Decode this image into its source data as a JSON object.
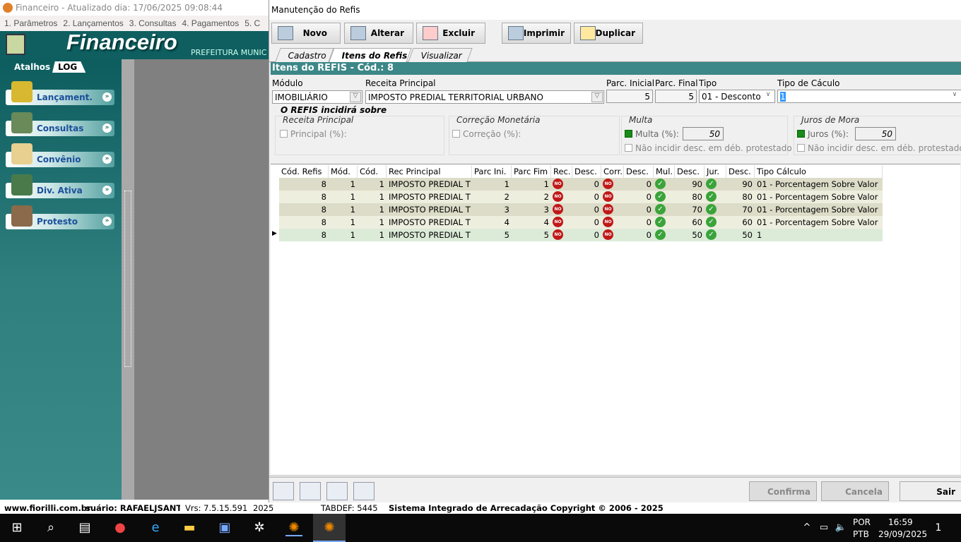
{
  "app": {
    "title": "Financeiro - Atualizado dia: 17/06/2025 09:08:44",
    "menu": [
      "1. Parâmetros",
      "2. Lançamentos",
      "3. Consultas",
      "4. Pagamentos",
      "5. C"
    ],
    "brand": "Financeiro",
    "subtitle": "PREFEITURA MUNIC"
  },
  "sidebar": {
    "atalhos": "Atalhos",
    "log": "LOG",
    "items": [
      {
        "label": "Lançament."
      },
      {
        "label": "Consultas"
      },
      {
        "label": "Convênio"
      },
      {
        "label": "Div. Ativa"
      },
      {
        "label": "Protesto"
      }
    ]
  },
  "dialog": {
    "title": "Manutenção do Refis",
    "toolbar": {
      "novo": "Novo",
      "alterar": "Alterar",
      "excluir": "Excluir",
      "imprimir": "Imprimir",
      "duplicar": "Duplicar"
    },
    "tabs": [
      "Cadastro",
      "Itens do Refis",
      "Visualizar"
    ],
    "section_title": "Itens do REFIS - Cód.:  8",
    "form": {
      "modulo_label": "Módulo",
      "modulo": "IMOBILIÁRIO",
      "receita_label": "Receita Principal",
      "receita": "IMPOSTO PREDIAL TERRITORIAL URBANO",
      "parc_ini_label": "Parc. Inicial",
      "parc_ini": "5",
      "parc_fim_label": "Parc. Final",
      "parc_fim": "5",
      "tipo_label": "Tipo",
      "tipo": "01 - Desconto",
      "tipo_calc_label": "Tipo de Cáculo",
      "tipo_calc": "1"
    },
    "incidence": {
      "title": "O REFIS incidirá sobre",
      "receita": {
        "title": "Receita Principal",
        "check": "Principal (%):",
        "checked": false
      },
      "correcao": {
        "title": "Correção Monetária",
        "check": "Correção (%):",
        "checked": false
      },
      "multa": {
        "title": "Multa",
        "check": "Multa (%):",
        "checked": true,
        "value": "50",
        "protest": "Não incidir desc. em déb. protestado"
      },
      "juros": {
        "title": "Juros de Mora",
        "check": "Juros (%):",
        "checked": true,
        "value": "50",
        "protest": "Não incidir desc. em déb. protestado"
      }
    },
    "grid": {
      "columns": [
        "Cód. Refis",
        "Mód.",
        "Cód.",
        "Rec Principal",
        "Parc Ini.",
        "Parc Fim",
        "Rec.",
        "Desc.",
        "Corr.",
        "Desc.",
        "Mul.",
        "Desc.",
        "Jur.",
        "Desc.",
        "Tipo Cálculo"
      ],
      "rows": [
        [
          "8",
          "1",
          "1",
          "IMPOSTO PREDIAL T",
          "1",
          "1",
          "no",
          "0",
          "no",
          "0",
          "ok",
          "90",
          "ok",
          "90",
          "01 - Porcentagem Sobre Valor"
        ],
        [
          "8",
          "1",
          "1",
          "IMPOSTO PREDIAL T",
          "2",
          "2",
          "no",
          "0",
          "no",
          "0",
          "ok",
          "80",
          "ok",
          "80",
          "01 - Porcentagem Sobre Valor"
        ],
        [
          "8",
          "1",
          "1",
          "IMPOSTO PREDIAL T",
          "3",
          "3",
          "no",
          "0",
          "no",
          "0",
          "ok",
          "70",
          "ok",
          "70",
          "01 - Porcentagem Sobre Valor"
        ],
        [
          "8",
          "1",
          "1",
          "IMPOSTO PREDIAL T",
          "4",
          "4",
          "no",
          "0",
          "no",
          "0",
          "ok",
          "60",
          "ok",
          "60",
          "01 - Porcentagem Sobre Valor"
        ],
        [
          "8",
          "1",
          "1",
          "IMPOSTO PREDIAL T",
          "5",
          "5",
          "no",
          "0",
          "no",
          "0",
          "ok",
          "50",
          "ok",
          "50",
          "1"
        ]
      ],
      "selected_row": 4,
      "no_label": "NO",
      "ok_label": "✓"
    },
    "bottom": {
      "confirma": "Confirma",
      "cancela": "Cancela",
      "sair": "Sair"
    }
  },
  "status": {
    "site": "www.fiorilli.com.br",
    "user": "suário: RAFAELJSANTC",
    "version": "Vrs: 7.5.15.591",
    "year": "2025",
    "tabdef": "TABDEF: 5445",
    "copyright": "Sistema Integrado de Arrecadação Copyright © 2006 - 2025"
  },
  "taskbar": {
    "lang1": "POR",
    "lang2": "PTB",
    "time": "16:59",
    "date": "29/09/2025",
    "notif": "1"
  },
  "colors": {
    "teal": "#0f5f60",
    "section": "#3c8787",
    "row_dark": "#dcdcc8",
    "row_light": "#eeeedf",
    "row_selected": "#dcebd8"
  }
}
